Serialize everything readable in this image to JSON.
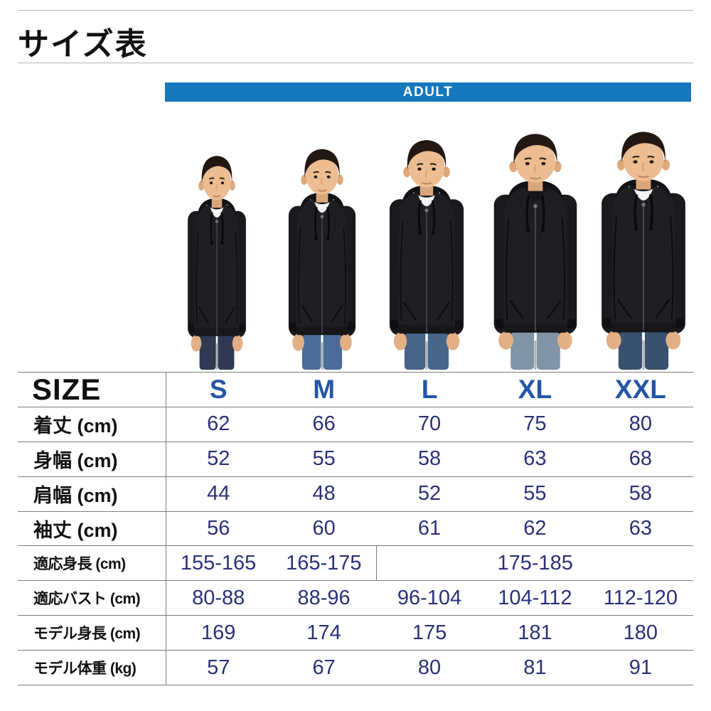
{
  "page": {
    "title": "サイズ表"
  },
  "banner": {
    "label": "ADULT"
  },
  "photo": {
    "models": [
      {
        "size": "S",
        "jeans": "#2f3a52",
        "tee_visible": true
      },
      {
        "size": "M",
        "jeans": "#4d6d99",
        "tee_visible": true
      },
      {
        "size": "L",
        "jeans": "#47658a",
        "tee_visible": true
      },
      {
        "size": "XL",
        "jeans": "#8094a5",
        "tee_visible": false
      },
      {
        "size": "XXL",
        "jeans": "#39506f",
        "tee_visible": true
      }
    ]
  },
  "table": {
    "corner_label": "SIZE",
    "columns": [
      "S",
      "M",
      "L",
      "XL",
      "XXL"
    ],
    "rows": [
      {
        "label": "着丈 (cm)",
        "values": [
          "62",
          "66",
          "70",
          "75",
          "80"
        ]
      },
      {
        "label": "身幅 (cm)",
        "values": [
          "52",
          "55",
          "58",
          "63",
          "68"
        ]
      },
      {
        "label": "肩幅 (cm)",
        "values": [
          "44",
          "48",
          "52",
          "55",
          "58"
        ]
      },
      {
        "label": "袖丈 (cm)",
        "values": [
          "56",
          "60",
          "61",
          "62",
          "63"
        ]
      },
      {
        "label": "適応身長 (cm)",
        "values": [
          "155-165",
          "165-175",
          {
            "text": "175-185",
            "span": 3
          }
        ]
      },
      {
        "label": "適応バスト (cm)",
        "values": [
          "80-88",
          "88-96",
          "96-104",
          "104-112",
          "112-120"
        ]
      },
      {
        "label": "モデル身長 (cm)",
        "values": [
          "169",
          "174",
          "175",
          "181",
          "180"
        ]
      },
      {
        "label": "モデル体重 (kg)",
        "values": [
          "57",
          "67",
          "80",
          "81",
          "91"
        ]
      }
    ]
  },
  "colors": {
    "banner_blue": "#1577bd",
    "size_header_blue": "#2456a5",
    "value_navy": "#2a3177",
    "hoodie_black": "#1e1e22"
  }
}
